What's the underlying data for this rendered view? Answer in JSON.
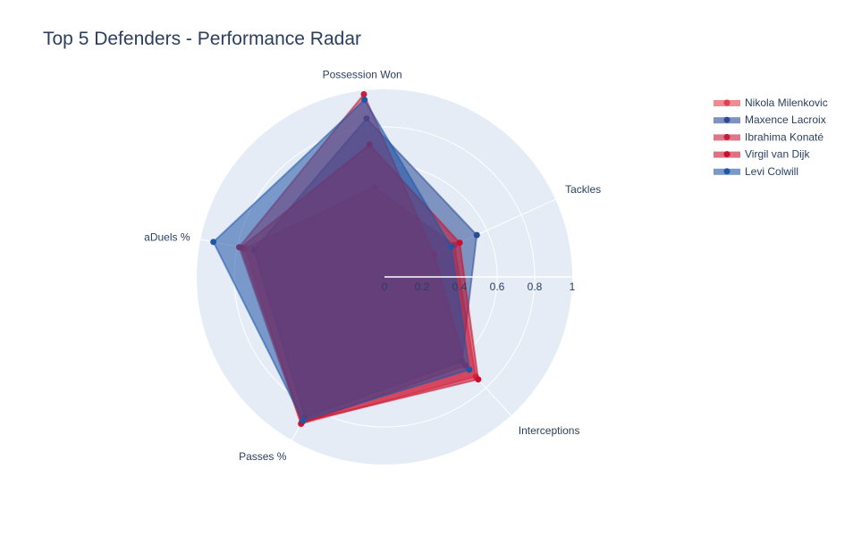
{
  "chart_data": {
    "type": "radar",
    "title": "Top 5 Defenders - Performance Radar",
    "axes": [
      "Tackles",
      "Interceptions",
      "Passes %",
      "aDuels %",
      "Possession Won"
    ],
    "radial_range": [
      0,
      1
    ],
    "radial_ticks": [
      0,
      0.2,
      0.4,
      0.6,
      0.8,
      1
    ],
    "radial_tick_labels": [
      "0",
      "0.2",
      "0.4",
      "0.6",
      "0.8",
      "1"
    ],
    "grid": true,
    "legend_position": "top-right",
    "series": [
      {
        "name": "Nikola Milenkovic",
        "color": "#e63d4f",
        "values": [
          0.41,
          0.72,
          0.9,
          0.76,
          0.48
        ]
      },
      {
        "name": "Maxence Lacroix",
        "color": "#2c4b96",
        "values": [
          0.54,
          0.61,
          0.86,
          0.71,
          0.85
        ]
      },
      {
        "name": "Ibrahima Konaté",
        "color": "#c41e3a",
        "values": [
          0.29,
          0.64,
          0.9,
          0.79,
          0.98
        ]
      },
      {
        "name": "Virgil van Dijk",
        "color": "#c8102e",
        "values": [
          0.44,
          0.74,
          0.89,
          0.78,
          0.71
        ]
      },
      {
        "name": "Levi Colwill",
        "color": "#1f56a5",
        "values": [
          0.39,
          0.67,
          0.88,
          0.93,
          0.95
        ]
      }
    ]
  }
}
